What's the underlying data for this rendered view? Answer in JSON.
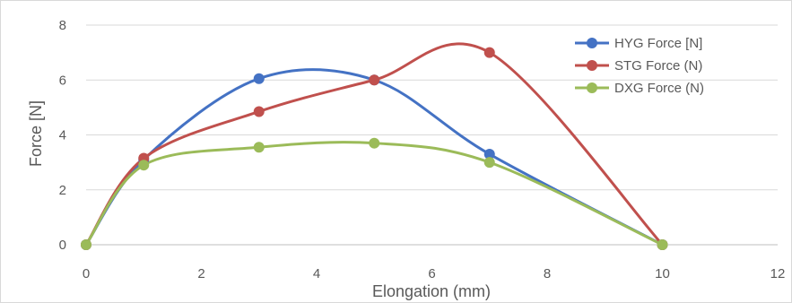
{
  "chart_data": {
    "type": "line",
    "smooth": true,
    "xlabel": "Elongation (mm)",
    "ylabel": "Force [N]",
    "xlim": [
      0,
      12
    ],
    "ylim": [
      0,
      8
    ],
    "xticks": [
      0,
      2,
      4,
      6,
      8,
      10,
      12
    ],
    "yticks": [
      0,
      2,
      4,
      6,
      8
    ],
    "grid": {
      "horizontal": true,
      "vertical": false
    },
    "legend_position": "top-right",
    "series": [
      {
        "name": "HYG Force [N]",
        "color": "#4472c4",
        "x": [
          0,
          1,
          3,
          5,
          7,
          10
        ],
        "y": [
          0,
          3.1,
          6.05,
          6.0,
          3.3,
          0
        ]
      },
      {
        "name": "STG Force (N)",
        "color": "#c0504d",
        "x": [
          0,
          1,
          3,
          5,
          7,
          10
        ],
        "y": [
          0,
          3.15,
          4.85,
          6.0,
          7.0,
          0
        ]
      },
      {
        "name": "DXG Force (N)",
        "color": "#9bbb59",
        "x": [
          0,
          1,
          3,
          5,
          7,
          10
        ],
        "y": [
          0,
          2.9,
          3.55,
          3.7,
          3.0,
          0
        ]
      }
    ]
  }
}
